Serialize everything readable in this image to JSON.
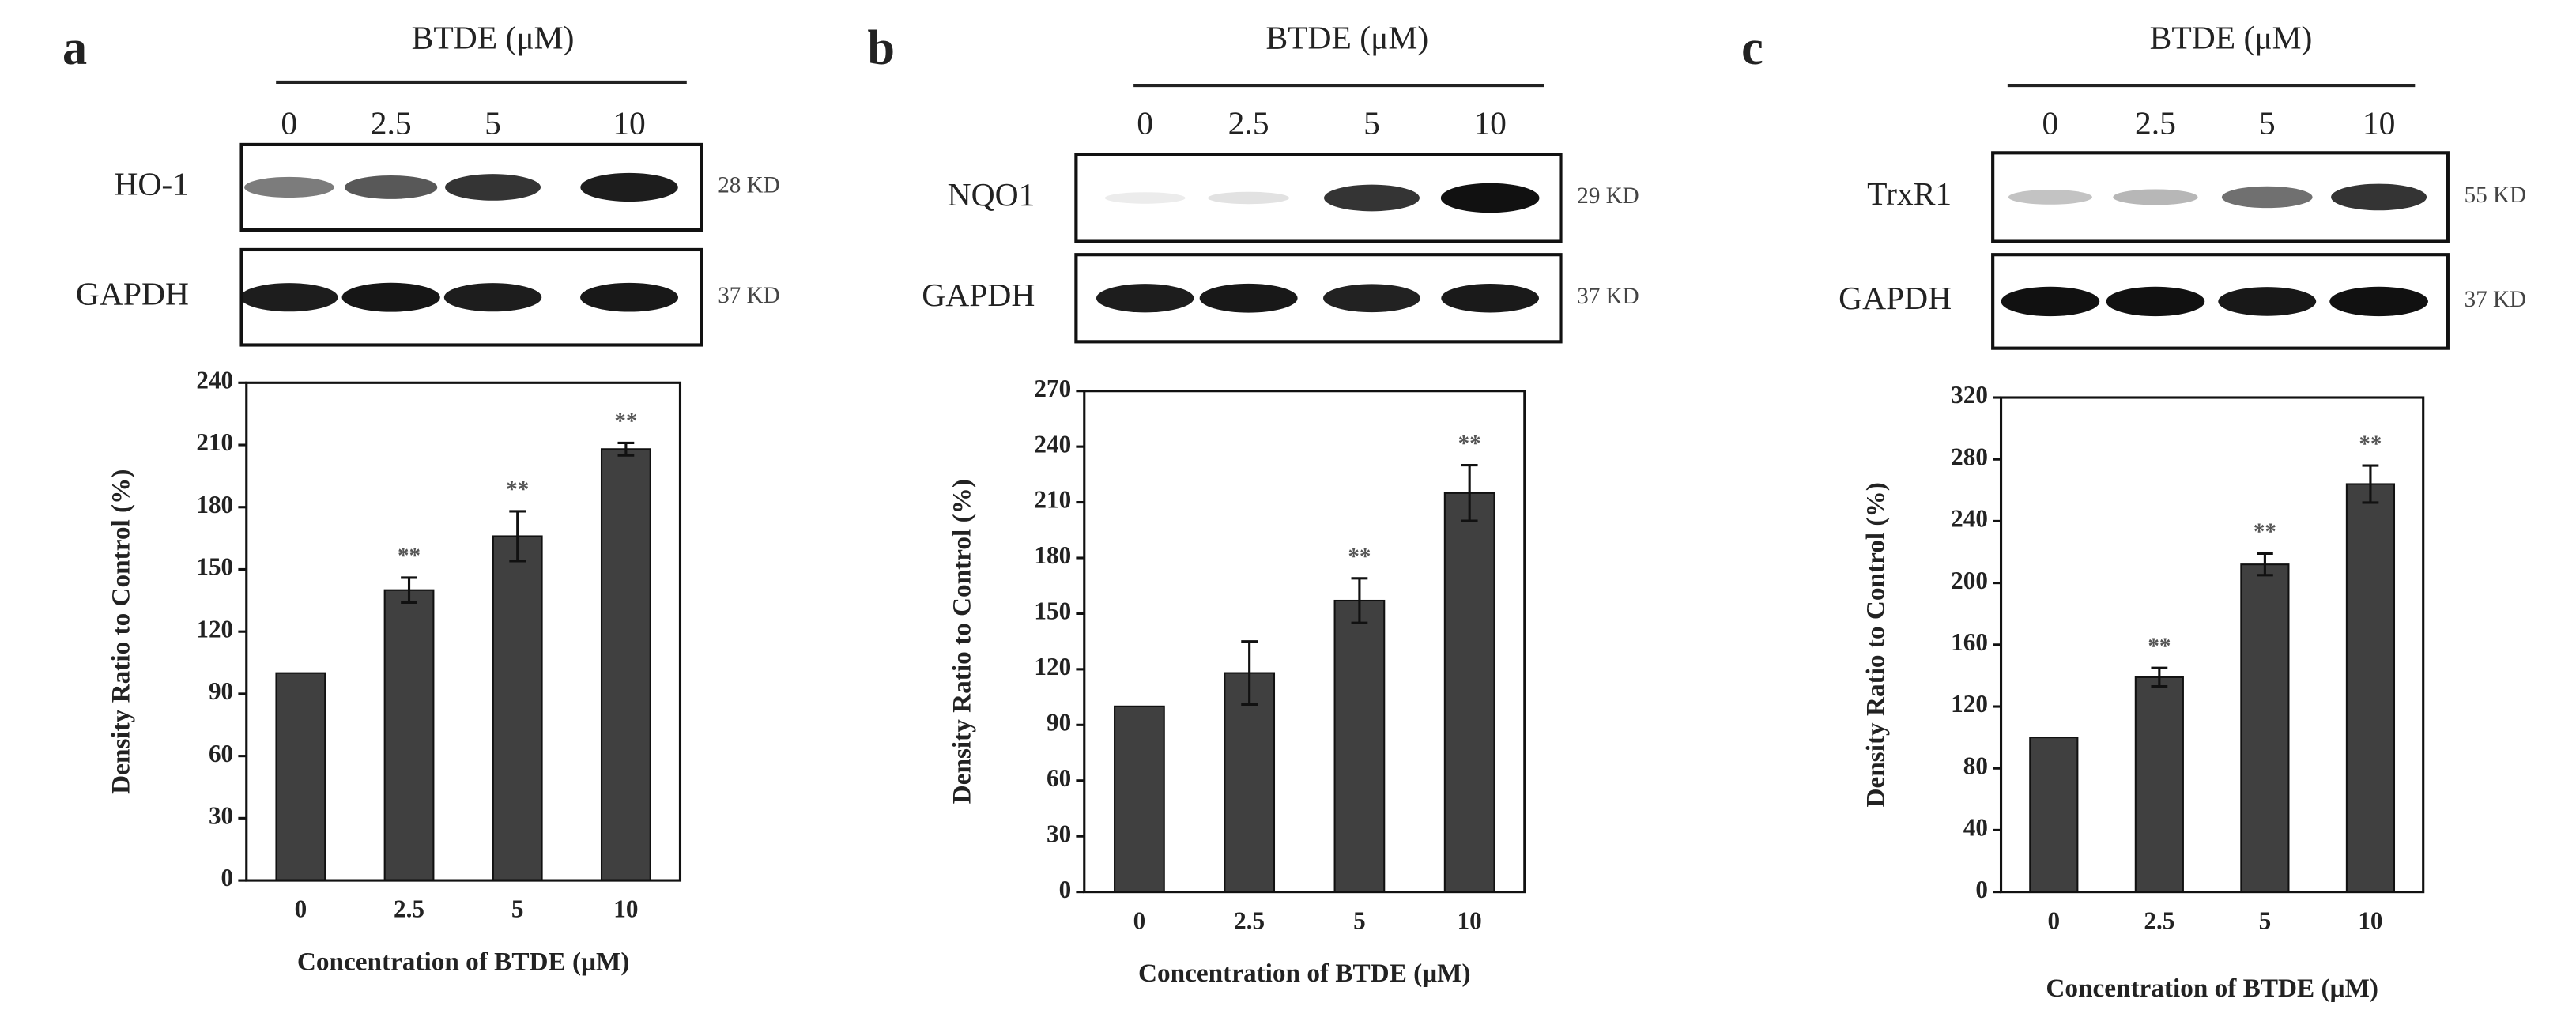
{
  "chart_data": [
    {
      "type": "bar",
      "categories": [
        "0",
        "2.5",
        "5",
        "10"
      ],
      "values": [
        100,
        140,
        166,
        208
      ],
      "errors": [
        0,
        6,
        12,
        3
      ],
      "annotations": [
        null,
        "**",
        "**",
        "**"
      ],
      "color": "#404040",
      "ylim": [
        0,
        240
      ],
      "yticks": [
        0,
        30,
        60,
        90,
        120,
        150,
        180,
        210,
        240
      ],
      "x_label": "Concentration of BTDE (μM)",
      "y_label": "Density Ratio to Control (%)"
    },
    {
      "type": "bar",
      "categories": [
        "0",
        "2.5",
        "5",
        "10"
      ],
      "values": [
        100,
        118,
        157,
        215
      ],
      "errors": [
        0,
        17,
        12,
        15
      ],
      "annotations": [
        null,
        null,
        "**",
        "**"
      ],
      "color": "#404040",
      "ylim": [
        0,
        270
      ],
      "yticks": [
        0,
        30,
        60,
        90,
        120,
        150,
        180,
        210,
        240,
        270
      ],
      "x_label": "Concentration of BTDE (μM)",
      "y_label": "Density Ratio to Control (%)"
    },
    {
      "type": "bar",
      "categories": [
        "0",
        "2.5",
        "5",
        "10"
      ],
      "values": [
        100,
        139,
        212,
        264
      ],
      "errors": [
        0,
        6,
        7,
        12
      ],
      "annotations": [
        null,
        "**",
        "**",
        "**"
      ],
      "color": "#404040",
      "ylim": [
        0,
        320
      ],
      "yticks": [
        0,
        40,
        80,
        120,
        160,
        200,
        240,
        280,
        320
      ],
      "x_label": "Concentration of BTDE (μM)",
      "y_label": "Density Ratio to Control (%)"
    }
  ],
  "panels": [
    {
      "label": "a",
      "header": "BTDE (μM)",
      "lanes": [
        "0",
        "2.5",
        "5",
        "10"
      ],
      "rows": [
        {
          "name": "HO-1",
          "size": "28 KD"
        },
        {
          "name": "GAPDH",
          "size": "37 KD"
        }
      ]
    },
    {
      "label": "b",
      "header": "BTDE (μM)",
      "lanes": [
        "0",
        "2.5",
        "5",
        "10"
      ],
      "rows": [
        {
          "name": "NQO1",
          "size": "29 KD"
        },
        {
          "name": "GAPDH",
          "size": "37 KD"
        }
      ]
    },
    {
      "label": "c",
      "header": "BTDE (μM)",
      "lanes": [
        "0",
        "2.5",
        "5",
        "10"
      ],
      "rows": [
        {
          "name": "TrxR1",
          "size": "55 KD"
        },
        {
          "name": "GAPDH",
          "size": "37 KD"
        }
      ]
    }
  ]
}
